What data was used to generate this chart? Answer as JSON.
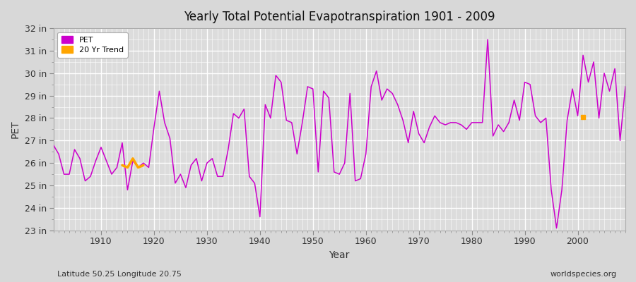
{
  "title": "Yearly Total Potential Evapotranspiration 1901 - 2009",
  "xlabel": "Year",
  "ylabel": "PET",
  "subtitle_lat_lon": "Latitude 50.25 Longitude 20.75",
  "watermark": "worldspecies.org",
  "ylim": [
    23,
    32
  ],
  "ytick_values": [
    23,
    24,
    25,
    26,
    27,
    28,
    29,
    30,
    31,
    32
  ],
  "ytick_labels": [
    "23 in",
    "24 in",
    "25 in",
    "26 in",
    "27 in",
    "28 in",
    "29 in",
    "30 in",
    "31 in",
    "32 in"
  ],
  "xlim": [
    1901,
    2009
  ],
  "xtick_values": [
    1910,
    1920,
    1930,
    1940,
    1950,
    1960,
    1970,
    1980,
    1990,
    2000
  ],
  "fig_bg_color": "#d8d8d8",
  "plot_bg_color": "#dcdcdc",
  "line_color": "#cc00cc",
  "trend_color": "#ffa500",
  "grid_color": "#ffffff",
  "years": [
    1901,
    1902,
    1903,
    1904,
    1905,
    1906,
    1907,
    1908,
    1909,
    1910,
    1911,
    1912,
    1913,
    1914,
    1915,
    1916,
    1917,
    1918,
    1919,
    1920,
    1921,
    1922,
    1923,
    1924,
    1925,
    1926,
    1927,
    1928,
    1929,
    1930,
    1931,
    1932,
    1933,
    1934,
    1935,
    1936,
    1937,
    1938,
    1939,
    1940,
    1941,
    1942,
    1943,
    1944,
    1945,
    1946,
    1947,
    1948,
    1949,
    1950,
    1951,
    1952,
    1953,
    1954,
    1955,
    1956,
    1957,
    1958,
    1959,
    1960,
    1961,
    1962,
    1963,
    1964,
    1965,
    1966,
    1967,
    1968,
    1969,
    1970,
    1971,
    1972,
    1973,
    1974,
    1975,
    1976,
    1977,
    1978,
    1979,
    1980,
    1981,
    1982,
    1983,
    1984,
    1985,
    1986,
    1987,
    1988,
    1989,
    1990,
    1991,
    1992,
    1993,
    1994,
    1995,
    1996,
    1997,
    1998,
    1999,
    2000,
    2001,
    2002,
    2003,
    2004,
    2005,
    2006,
    2007,
    2008,
    2009
  ],
  "pet_values": [
    26.8,
    26.4,
    25.5,
    25.5,
    26.6,
    26.2,
    25.2,
    25.4,
    26.1,
    26.7,
    26.1,
    25.5,
    25.8,
    26.9,
    24.8,
    26.1,
    25.8,
    26.0,
    25.8,
    27.6,
    29.2,
    27.8,
    27.1,
    25.1,
    25.5,
    24.9,
    25.9,
    26.2,
    25.2,
    26.0,
    26.2,
    25.4,
    25.4,
    26.6,
    28.2,
    28.0,
    28.4,
    25.4,
    25.1,
    23.6,
    28.6,
    28.0,
    29.9,
    29.6,
    27.9,
    27.8,
    26.4,
    27.8,
    29.4,
    29.3,
    25.6,
    29.2,
    28.9,
    25.6,
    25.5,
    26.0,
    29.1,
    25.2,
    25.3,
    26.4,
    29.4,
    30.1,
    28.8,
    29.3,
    29.1,
    28.6,
    27.9,
    26.9,
    28.3,
    27.3,
    26.9,
    27.6,
    28.1,
    27.8,
    27.7,
    27.8,
    27.8,
    27.7,
    27.5,
    27.8,
    27.8,
    27.8,
    31.5,
    27.2,
    27.7,
    27.4,
    27.8,
    28.8,
    27.9,
    29.6,
    29.5,
    28.1,
    27.8,
    28.0,
    24.8,
    23.1,
    24.8,
    27.9,
    29.3,
    28.1,
    30.8,
    29.6,
    30.5,
    28.0,
    30.0,
    29.2,
    30.2,
    27.0,
    29.4
  ],
  "trend_seg1_years": [
    1914,
    1915,
    1916,
    1917,
    1918
  ],
  "trend_seg1_values": [
    25.9,
    25.8,
    26.2,
    25.8,
    25.9
  ],
  "trend_dot_year": 2001,
  "trend_dot_value": 28.05,
  "legend_pet_label": "PET",
  "legend_trend_label": "20 Yr Trend"
}
